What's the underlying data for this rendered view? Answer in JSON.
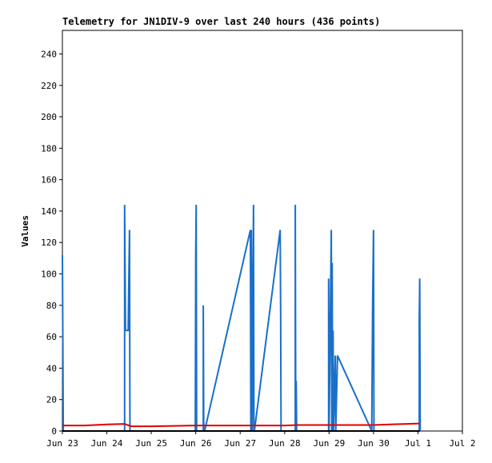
{
  "chart_data": {
    "type": "line",
    "title": "Telemetry for JN1DIV-9 over last 240 hours (436 points)",
    "y_label": "Values",
    "xlim": [
      23,
      32
    ],
    "xticks": [
      {
        "value": 23,
        "label": "Jun 23"
      },
      {
        "value": 24,
        "label": "Jun 24"
      },
      {
        "value": 25,
        "label": "Jun 25"
      },
      {
        "value": 26,
        "label": "Jun 26"
      },
      {
        "value": 27,
        "label": "Jun 27"
      },
      {
        "value": 28,
        "label": "Jun 28"
      },
      {
        "value": 29,
        "label": "Jun 29"
      },
      {
        "value": 30,
        "label": "Jun 30"
      },
      {
        "value": 31,
        "label": "Jul 1"
      },
      {
        "value": 32,
        "label": "Jul 2"
      }
    ],
    "ylim": [
      0,
      255
    ],
    "yticks": [
      0,
      20,
      40,
      60,
      80,
      100,
      120,
      140,
      160,
      180,
      200,
      220,
      240
    ],
    "series": [
      {
        "color": "#1a6fc9",
        "x": [
          23.0,
          23.01,
          23.02,
          24.4,
          24.4,
          24.42,
          24.48,
          24.51,
          24.52,
          25.99,
          26.0,
          26.01,
          26.02,
          26.17,
          26.17,
          26.18,
          26.2,
          27.23,
          27.24,
          27.25,
          27.27,
          27.28,
          27.3,
          27.31,
          27.32,
          27.9,
          27.91,
          27.92,
          28.24,
          28.24,
          28.25,
          28.26,
          28.27,
          28.99,
          28.99,
          29.0,
          29.05,
          29.06,
          29.07,
          29.08,
          29.09,
          29.1,
          29.14,
          29.15,
          29.19,
          29.96,
          29.98,
          30.0,
          30.01,
          31.03,
          31.03,
          31.04,
          31.05
        ],
        "y": [
          112,
          57,
          0,
          0,
          144,
          64,
          64,
          128,
          0,
          0,
          112,
          144,
          0,
          0,
          80,
          0,
          0,
          128,
          0,
          128,
          0,
          65,
          144,
          0,
          0,
          128,
          80,
          0,
          0,
          144,
          0,
          32,
          0,
          0,
          97,
          0,
          128,
          0,
          107,
          0,
          64,
          0,
          48,
          0,
          48,
          0,
          80,
          128,
          0,
          0,
          72,
          97,
          0
        ]
      },
      {
        "color": "#e00000",
        "x": [
          23.0,
          23.5,
          24.0,
          24.4,
          24.55,
          25.0,
          26.0,
          27.0,
          28.0,
          28.3,
          29.0,
          30.0,
          30.5,
          31.03
        ],
        "y": [
          3.5,
          3.5,
          4.2,
          4.5,
          3,
          3,
          3.5,
          3.5,
          3.5,
          3.8,
          3.8,
          3.8,
          4.3,
          4.8
        ]
      },
      {
        "color": "#000000",
        "x": [
          23.0,
          31.04
        ],
        "y": [
          0,
          0
        ]
      }
    ]
  }
}
